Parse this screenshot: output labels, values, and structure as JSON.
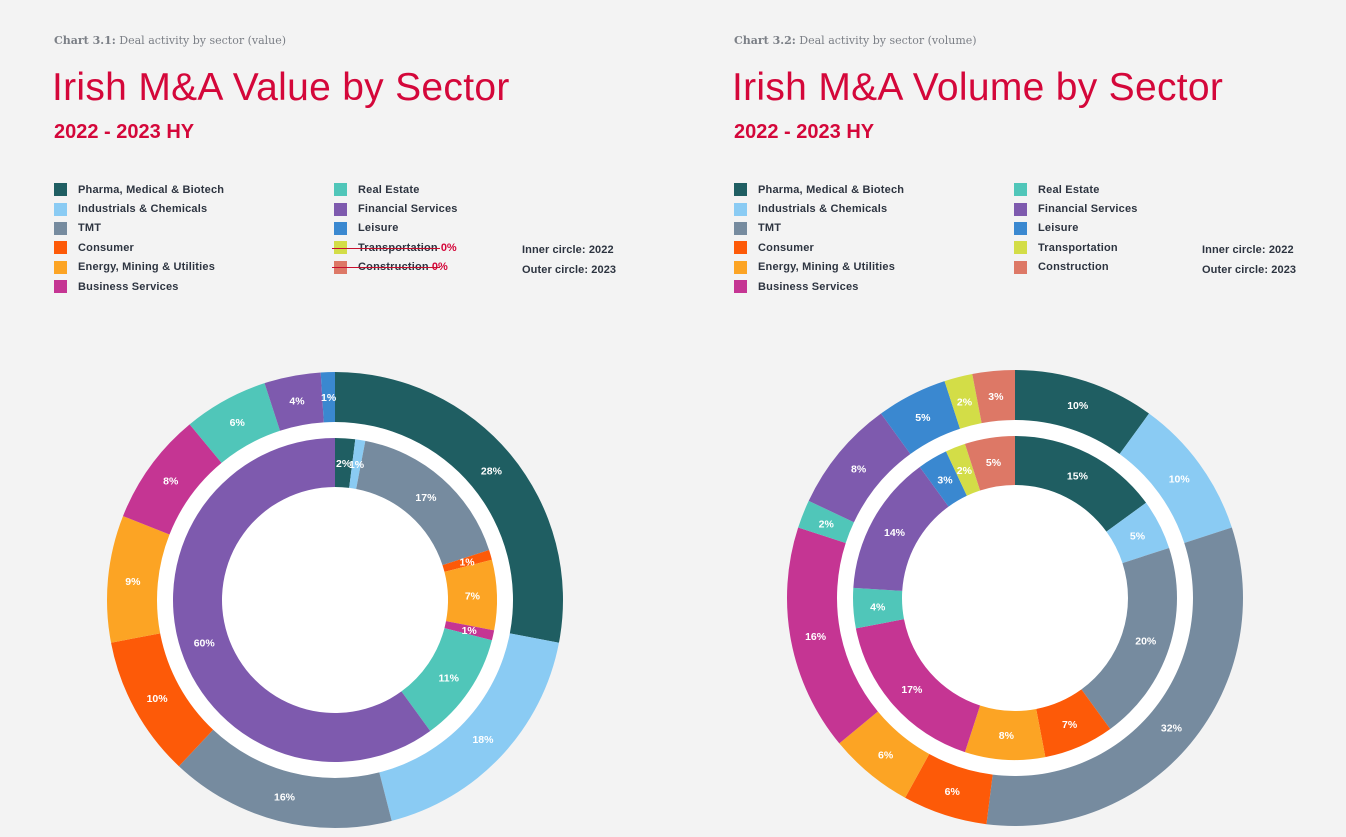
{
  "colors": {
    "accent": "#d4073a",
    "background": "#f3f3f3"
  },
  "sectors": [
    {
      "key": "pharma",
      "name": "Pharma, Medical & Biotech",
      "color": "#1f5e62"
    },
    {
      "key": "industrials",
      "name": "Industrials & Chemicals",
      "color": "#8acbf3"
    },
    {
      "key": "tmt",
      "name": "TMT",
      "color": "#768b9f"
    },
    {
      "key": "consumer",
      "name": "Consumer",
      "color": "#fd5a08"
    },
    {
      "key": "energy",
      "name": "Energy, Mining & Utilities",
      "color": "#fca424"
    },
    {
      "key": "business",
      "name": "Business Services",
      "color": "#c53593"
    },
    {
      "key": "realestate",
      "name": "Real Estate",
      "color": "#50c6b9"
    },
    {
      "key": "financial",
      "name": "Financial Services",
      "color": "#7e5aae"
    },
    {
      "key": "leisure",
      "name": "Leisure",
      "color": "#3a88d0"
    },
    {
      "key": "transportation",
      "name": "Transportation",
      "color": "#d3dd47"
    },
    {
      "key": "construction",
      "name": "Construction",
      "color": "#dd7866"
    }
  ],
  "left": {
    "caption_bold": "Chart 3.1:",
    "caption_text": " Deal activity by sector (value)",
    "title": "Irish M&A Value by Sector",
    "subtitle": "2022 - 2023 HY",
    "legend_col1": [
      {
        "label": "Pharma, Medical & Biotech",
        "color": "#1f5e62"
      },
      {
        "label": "Industrials & Chemicals",
        "color": "#8acbf3"
      },
      {
        "label": "TMT",
        "color": "#768b9f"
      },
      {
        "label": "Consumer",
        "color": "#fd5a08"
      },
      {
        "label": "Energy, Mining & Utilities",
        "color": "#fca424"
      },
      {
        "label": "Business Services",
        "color": "#c53593"
      }
    ],
    "legend_col2": [
      {
        "label": "Real Estate",
        "color": "#50c6b9",
        "struck": false,
        "note": ""
      },
      {
        "label": "Financial Services",
        "color": "#7e5aae",
        "struck": false,
        "note": ""
      },
      {
        "label": "Leisure",
        "color": "#3a88d0",
        "struck": false,
        "note": ""
      },
      {
        "label": "Transportation",
        "color": "#d3dd47",
        "struck": true,
        "note": "0%"
      },
      {
        "label": "Construction",
        "color": "#dd7866",
        "struck": true,
        "note": "0%"
      }
    ],
    "inner_note": "Inner circle: 2022",
    "outer_note": "Outer circle: 2023"
  },
  "right": {
    "caption_bold": "Chart 3.2:",
    "caption_text": " Deal activity by sector (volume)",
    "title": "Irish M&A Volume by Sector",
    "subtitle": "2022 - 2023 HY",
    "legend_col1": [
      {
        "label": "Pharma, Medical & Biotech",
        "color": "#1f5e62"
      },
      {
        "label": "Industrials & Chemicals",
        "color": "#8acbf3"
      },
      {
        "label": "TMT",
        "color": "#768b9f"
      },
      {
        "label": "Consumer",
        "color": "#fd5a08"
      },
      {
        "label": "Energy, Mining & Utilities",
        "color": "#fca424"
      },
      {
        "label": "Business Services",
        "color": "#c53593"
      }
    ],
    "legend_col2": [
      {
        "label": "Real Estate",
        "color": "#50c6b9",
        "struck": false,
        "note": ""
      },
      {
        "label": "Financial Services",
        "color": "#7e5aae",
        "struck": false,
        "note": ""
      },
      {
        "label": "Leisure",
        "color": "#3a88d0",
        "struck": false,
        "note": ""
      },
      {
        "label": "Transportation",
        "color": "#d3dd47",
        "struck": false,
        "note": ""
      },
      {
        "label": "Construction",
        "color": "#dd7866",
        "struck": false,
        "note": ""
      }
    ],
    "inner_note": "Inner circle: 2022",
    "outer_note": "Outer circle: 2023"
  },
  "chart_data": [
    {
      "type": "pie",
      "variant": "nested-donut",
      "title": "Irish M&A Value by Sector",
      "subtitle": "2022 - 2023 HY",
      "caption": "Chart 3.1: Deal activity by sector (value)",
      "start": "12 o'clock, clockwise",
      "series": [
        {
          "name": "2022",
          "ring": "inner",
          "categories": [
            "Pharma, Medical & Biotech",
            "Industrials & Chemicals",
            "TMT",
            "Consumer",
            "Energy, Mining & Utilities",
            "Business Services",
            "Real Estate",
            "Financial Services"
          ],
          "values": [
            2,
            1,
            17,
            1,
            7,
            1,
            11,
            60
          ],
          "labels": [
            "2%",
            "1%",
            "17%",
            "1%",
            "7%",
            "1%",
            "11%",
            "60%"
          ]
        },
        {
          "name": "2023",
          "ring": "outer",
          "categories": [
            "Pharma, Medical & Biotech",
            "Industrials & Chemicals",
            "TMT",
            "Consumer",
            "Energy, Mining & Utilities",
            "Business Services",
            "Real Estate",
            "Financial Services",
            "Leisure"
          ],
          "values": [
            28,
            18,
            16,
            10,
            9,
            8,
            6,
            4,
            1
          ],
          "labels": [
            "28%",
            "18%",
            "16%",
            "10%",
            "9%",
            "8%",
            "6%",
            "4%",
            "1%"
          ]
        }
      ],
      "legend": "top"
    },
    {
      "type": "pie",
      "variant": "nested-donut",
      "title": "Irish M&A Volume by Sector",
      "subtitle": "2022 - 2023 HY",
      "caption": "Chart 3.2: Deal activity by sector (volume)",
      "start": "12 o'clock, clockwise",
      "series": [
        {
          "name": "2022",
          "ring": "inner",
          "categories": [
            "Pharma, Medical & Biotech",
            "Industrials & Chemicals",
            "TMT",
            "Consumer",
            "Energy, Mining & Utilities",
            "Business Services",
            "Real Estate",
            "Financial Services",
            "Leisure",
            "Transportation",
            "Construction"
          ],
          "values": [
            15,
            5,
            20,
            7,
            8,
            17,
            4,
            14,
            3,
            2,
            5
          ],
          "labels": [
            "15%",
            "5%",
            "20%",
            "7%",
            "8%",
            "17%",
            "4%",
            "14%",
            "3%",
            "2%",
            "5%"
          ]
        },
        {
          "name": "2023",
          "ring": "outer",
          "categories": [
            "Pharma, Medical & Biotech",
            "Industrials & Chemicals",
            "TMT",
            "Consumer",
            "Energy, Mining & Utilities",
            "Business Services",
            "Real Estate",
            "Financial Services",
            "Leisure",
            "Transportation",
            "Construction"
          ],
          "values": [
            10,
            10,
            32,
            6,
            6,
            16,
            2,
            8,
            5,
            2,
            3
          ],
          "labels": [
            "10%",
            "10%",
            "32%",
            "6%",
            "6%",
            "16%",
            "2%",
            "8%",
            "5%",
            "2%",
            "3%"
          ]
        }
      ],
      "legend": "top"
    }
  ]
}
